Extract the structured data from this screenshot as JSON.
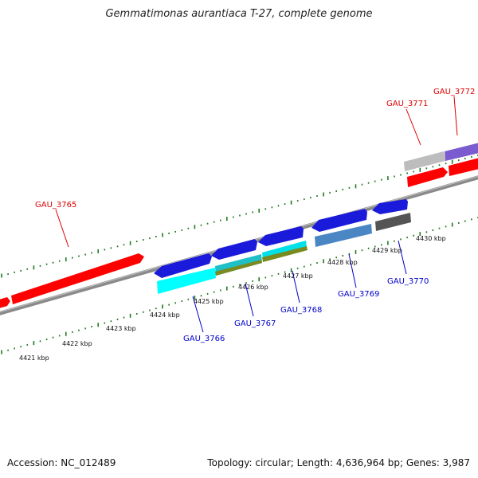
{
  "title": "Gemmatimonas aurantiaca T-27, complete genome",
  "accession": "Accession: NC_012489",
  "summary": "Topology: circular; Length: 4,636,964 bp; Genes: 3,987",
  "colors": {
    "backbone": "#8a8a8a",
    "ticks": "#1e7a1e",
    "forward_label": "#dd0000",
    "reverse_label": "#0000cc"
  },
  "scale_ticks": [
    {
      "label": "4421 kbp"
    },
    {
      "label": "4422 kbp"
    },
    {
      "label": "4423 kbp"
    },
    {
      "label": "4424 kbp"
    },
    {
      "label": "4425 kbp"
    },
    {
      "label": "4426 kbp"
    },
    {
      "label": "4427 kbp"
    },
    {
      "label": "4428 kbp"
    },
    {
      "label": "4429 kbp"
    },
    {
      "label": "4430 kbp"
    }
  ],
  "gene_labels": [
    {
      "name": "GAU_3765",
      "strand": "forward"
    },
    {
      "name": "GAU_3771",
      "strand": "forward"
    },
    {
      "name": "GAU_3772",
      "strand": "forward"
    },
    {
      "name": "GAU_3766",
      "strand": "reverse"
    },
    {
      "name": "GAU_3767",
      "strand": "reverse"
    },
    {
      "name": "GAU_3768",
      "strand": "reverse"
    },
    {
      "name": "GAU_3769",
      "strand": "reverse"
    },
    {
      "name": "GAU_3770",
      "strand": "reverse"
    }
  ]
}
